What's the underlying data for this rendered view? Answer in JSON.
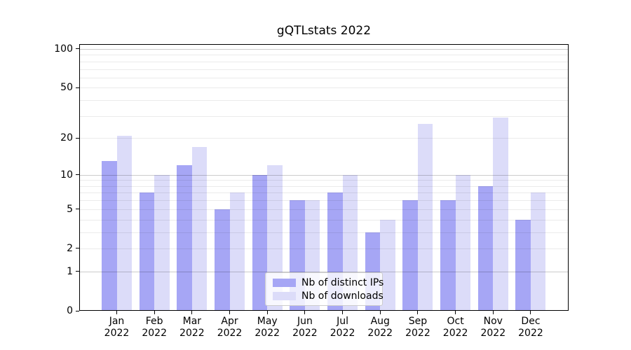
{
  "chart_data": {
    "type": "bar",
    "title": "gQTLstats 2022",
    "x_categories": [
      "Jan",
      "Feb",
      "Mar",
      "Apr",
      "May",
      "Jun",
      "Jul",
      "Aug",
      "Sep",
      "Oct",
      "Nov",
      "Dec"
    ],
    "x_year_label": "2022",
    "series": [
      {
        "name": "Nb of distinct IPs",
        "color": "#a6a6f5",
        "values": [
          13,
          7,
          12,
          5,
          10,
          6,
          7,
          3,
          6,
          6,
          8,
          4
        ]
      },
      {
        "name": "Nb of downloads",
        "color": "#dcdcf9",
        "values": [
          21,
          10,
          17,
          7,
          12,
          6,
          10,
          4,
          26,
          10,
          29,
          7
        ]
      }
    ],
    "yscale": "log1p",
    "ylim": [
      0,
      110
    ],
    "yticks": [
      0,
      1,
      2,
      5,
      10,
      20,
      50,
      100
    ],
    "major_gridlines": [
      1,
      10,
      100
    ],
    "minor_gridlines": [
      2,
      3,
      4,
      5,
      6,
      7,
      8,
      9,
      20,
      30,
      40,
      50,
      60,
      70,
      80,
      90
    ],
    "grid": "on",
    "legend": {
      "position": "lower center"
    }
  }
}
